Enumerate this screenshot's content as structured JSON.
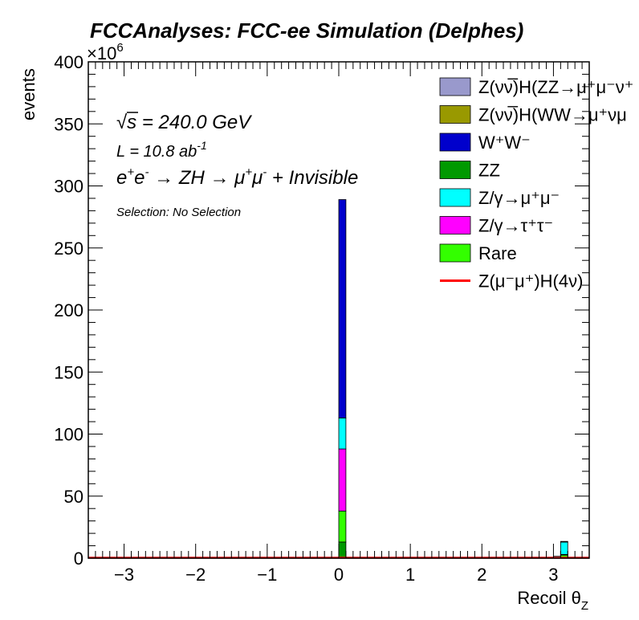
{
  "chart_data": {
    "type": "bar",
    "stacked": true,
    "title": "FCCAnalyses: FCC-ee Simulation (Delphes)",
    "xlabel": "Recoil θ",
    "xlabel_sub": "Z",
    "ylabel": "events",
    "y_multiplier_base": "×10",
    "y_multiplier_exp": "6",
    "xlim": [
      -3.5,
      3.5
    ],
    "ylim": [
      0,
      400
    ],
    "x_ticks": [
      -3,
      -2,
      -1,
      0,
      1,
      2,
      3
    ],
    "x_tick_labels": [
      "−3",
      "−2",
      "−1",
      "0",
      "1",
      "2",
      "3"
    ],
    "y_ticks": [
      0,
      50,
      100,
      150,
      200,
      250,
      300,
      350,
      400
    ],
    "y_tick_labels": [
      "0",
      "50",
      "100",
      "150",
      "200",
      "250",
      "300",
      "350",
      "400"
    ],
    "bin_width": 0.1,
    "annotations": {
      "sqrt": "√",
      "energy_s": "s",
      "energy_rest": " = 240.0 GeV",
      "lumi_main": "L = 10.8 ab",
      "lumi_exp": "-1",
      "process": {
        "e": "e",
        "e_plus": "+",
        "e2": "e",
        "e_minus": "-",
        "arrow1": " → ZH → ",
        "mu": "μ",
        "mu_plus": "+",
        "mu2": "μ",
        "mu_minus": "-",
        "rest": " + Invisible"
      },
      "selection": "Selection: No Selection"
    },
    "legend": {
      "placement": "top-right",
      "entries": [
        {
          "label": "Z(νν̅)H(ZZ→μ⁺μ⁻ν⁺",
          "color": "#9999cc",
          "kind": "box"
        },
        {
          "label": "Z(νν̅)H(WW→μ⁺νμ",
          "color": "#999900",
          "kind": "box"
        },
        {
          "label": "W⁺W⁻",
          "color": "#0000cc",
          "kind": "box"
        },
        {
          "label": "ZZ",
          "color": "#009900",
          "kind": "box"
        },
        {
          "label": "Z/γ→μ⁺μ⁻",
          "color": "#00ffff",
          "kind": "box"
        },
        {
          "label": "Z/γ→τ⁺τ⁻",
          "color": "#ff00ff",
          "kind": "box"
        },
        {
          "label": "Rare",
          "color": "#33ff00",
          "kind": "box"
        },
        {
          "label": "Z(μ⁻μ⁺)H(4ν)",
          "color": "#ff0000",
          "kind": "line"
        }
      ]
    },
    "series": [
      {
        "name": "ZZ",
        "color": "#009900",
        "bars": [
          {
            "x": 0.05,
            "value": 13
          },
          {
            "x": 3.15,
            "value": 0.5
          }
        ]
      },
      {
        "name": "Rare",
        "color": "#33ff00",
        "bars": [
          {
            "x": 0.05,
            "value": 25
          },
          {
            "x": 3.15,
            "value": 2
          }
        ]
      },
      {
        "name": "Z/γ→τ⁺τ⁻",
        "color": "#ff00ff",
        "bars": [
          {
            "x": 0.05,
            "value": 50
          },
          {
            "x": 3.15,
            "value": 0.5
          }
        ]
      },
      {
        "name": "Z/γ→μ⁺μ⁻",
        "color": "#00ffff",
        "bars": [
          {
            "x": 0.05,
            "value": 25
          },
          {
            "x": 3.05,
            "value": 1.5
          },
          {
            "x": 3.15,
            "value": 10
          }
        ]
      },
      {
        "name": "W⁺W⁻",
        "color": "#0000cc",
        "bars": [
          {
            "x": 0.05,
            "value": 176
          },
          {
            "x": 3.15,
            "value": 0.5
          }
        ]
      }
    ],
    "signal_line": {
      "name": "Z(μ⁻μ⁺)H(4ν)",
      "color": "#ff0000",
      "value": 0.3
    }
  }
}
